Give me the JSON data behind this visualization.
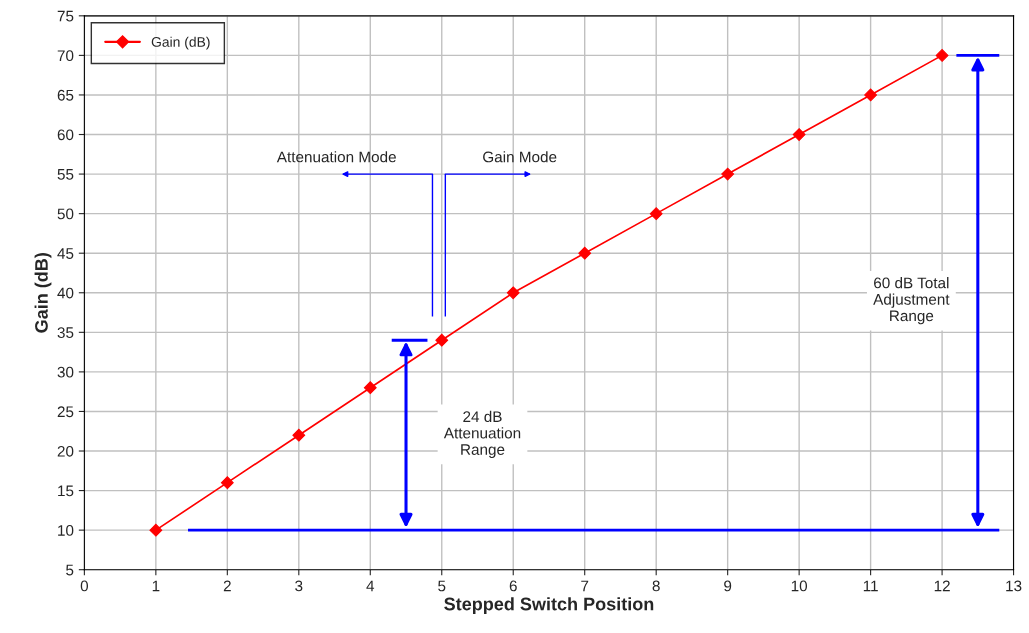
{
  "chart_data": {
    "type": "line",
    "x": [
      1,
      2,
      3,
      4,
      5,
      6,
      7,
      8,
      9,
      10,
      11,
      12
    ],
    "series": [
      {
        "name": "Gain (dB)",
        "color": "#ff0000",
        "values": [
          10,
          16,
          22,
          28,
          34,
          40,
          45,
          50,
          55,
          60,
          65,
          70
        ]
      }
    ],
    "xlabel": "Stepped Switch Position",
    "ylabel": "Gain (dB)",
    "xlim": [
      0,
      13
    ],
    "xticks": [
      0,
      1,
      2,
      3,
      4,
      5,
      6,
      7,
      8,
      9,
      10,
      11,
      12,
      13
    ],
    "ylim": [
      5,
      75
    ],
    "yticks": [
      5,
      10,
      15,
      20,
      25,
      30,
      35,
      40,
      45,
      50,
      55,
      60,
      65,
      70,
      75
    ],
    "annotations": [
      "Attenuation Mode",
      "Gain Mode",
      "24 dB\nAttenuation\nRange",
      "60 dB Total\nAdjustment\nRange"
    ],
    "ref_lines": [
      {
        "axis": "y",
        "value": 10,
        "color": "#0000ff"
      }
    ],
    "grid": true,
    "legend": "top left",
    "marker": "diamond",
    "line_style": "solid"
  }
}
